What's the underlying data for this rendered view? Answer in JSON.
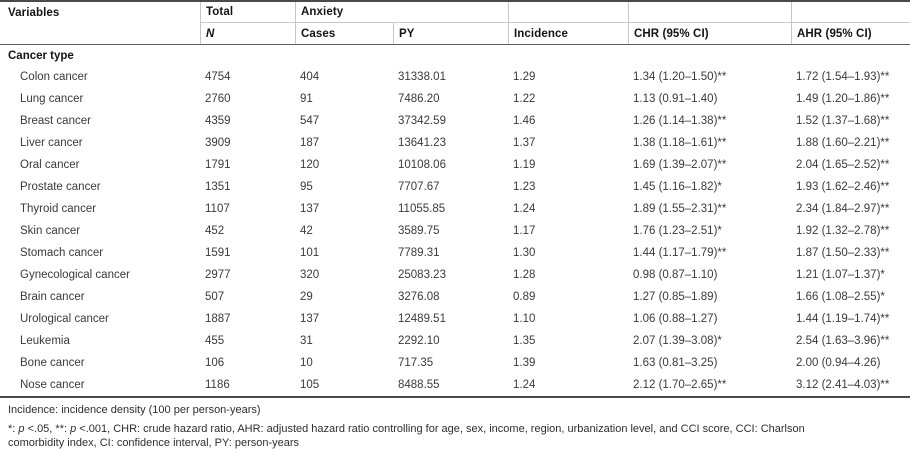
{
  "table": {
    "header": {
      "row1": {
        "variables": "Variables",
        "total": "Total",
        "anxiety": "Anxiety"
      },
      "row2": {
        "n": "N",
        "cases": "Cases",
        "py": "PY",
        "incidence": "Incidence",
        "chr": "CHR (95% CI)",
        "ahr": "AHR (95% CI)"
      }
    },
    "group_label": "Cancer type",
    "rows": [
      {
        "label": "Colon cancer",
        "n": "4754",
        "cases": "404",
        "py": "31338.01",
        "incidence": "1.29",
        "chr": "1.34 (1.20–1.50)**",
        "ahr": "1.72 (1.54–1.93)**"
      },
      {
        "label": "Lung cancer",
        "n": "2760",
        "cases": "91",
        "py": "7486.20",
        "incidence": "1.22",
        "chr": "1.13 (0.91–1.40)",
        "ahr": "1.49 (1.20–1.86)**"
      },
      {
        "label": "Breast cancer",
        "n": "4359",
        "cases": "547",
        "py": "37342.59",
        "incidence": "1.46",
        "chr": "1.26 (1.14–1.38)**",
        "ahr": "1.52 (1.37–1.68)**"
      },
      {
        "label": "Liver cancer",
        "n": "3909",
        "cases": "187",
        "py": "13641.23",
        "incidence": "1.37",
        "chr": "1.38 (1.18–1.61)**",
        "ahr": "1.88 (1.60–2.21)**"
      },
      {
        "label": "Oral cancer",
        "n": "1791",
        "cases": "120",
        "py": "10108.06",
        "incidence": "1.19",
        "chr": "1.69 (1.39–2.07)**",
        "ahr": "2.04 (1.65–2.52)**"
      },
      {
        "label": "Prostate cancer",
        "n": "1351",
        "cases": "95",
        "py": "7707.67",
        "incidence": "1.23",
        "chr": "1.45 (1.16–1.82)*",
        "ahr": "1.93 (1.62–2.46)**"
      },
      {
        "label": "Thyroid cancer",
        "n": "1107",
        "cases": "137",
        "py": "11055.85",
        "incidence": "1.24",
        "chr": "1.89 (1.55–2.31)**",
        "ahr": "2.34 (1.84–2.97)**"
      },
      {
        "label": "Skin cancer",
        "n": "452",
        "cases": "42",
        "py": "3589.75",
        "incidence": "1.17",
        "chr": "1.76 (1.23–2.51)*",
        "ahr": "1.92 (1.32–2.78)**"
      },
      {
        "label": "Stomach cancer",
        "n": "1591",
        "cases": "101",
        "py": "7789.31",
        "incidence": "1.30",
        "chr": "1.44 (1.17–1.79)**",
        "ahr": "1.87 (1.50–2.33)**"
      },
      {
        "label": "Gynecological cancer",
        "n": "2977",
        "cases": "320",
        "py": "25083.23",
        "incidence": "1.28",
        "chr": "0.98 (0.87–1.10)",
        "ahr": "1.21 (1.07–1.37)*"
      },
      {
        "label": "Brain cancer",
        "n": "507",
        "cases": "29",
        "py": "3276.08",
        "incidence": "0.89",
        "chr": "1.27 (0.85–1.89)",
        "ahr": "1.66 (1.08–2.55)*"
      },
      {
        "label": "Urological cancer",
        "n": "1887",
        "cases": "137",
        "py": "12489.51",
        "incidence": "1.10",
        "chr": "1.06 (0.88–1.27)",
        "ahr": "1.44 (1.19–1.74)**"
      },
      {
        "label": "Leukemia",
        "n": "455",
        "cases": "31",
        "py": "2292.10",
        "incidence": "1.35",
        "chr": "2.07 (1.39–3.08)*",
        "ahr": "2.54 (1.63–3.96)**"
      },
      {
        "label": "Bone cancer",
        "n": "106",
        "cases": "10",
        "py": "717.35",
        "incidence": "1.39",
        "chr": "1.63 (0.81–3.25)",
        "ahr": "2.00 (0.94–4.26)"
      },
      {
        "label": "Nose cancer",
        "n": "1186",
        "cases": "105",
        "py": "8488.55",
        "incidence": "1.24",
        "chr": "2.12 (1.70–2.65)**",
        "ahr": "3.12 (2.41–4.03)**"
      }
    ],
    "footnotes": {
      "incidence_note": "Incidence: incidence density (100 per person-years)",
      "abbrev_note": {
        "parts": [
          "*: ",
          "p",
          " <.05, **: ",
          "p",
          " <.001, CHR: crude hazard ratio, AHR: adjusted hazard ratio controlling for age, sex, income, region, urbanization level, and CCI score, CCI: Charlson"
        ],
        "line2": "comorbidity index, CI: confidence interval, PY: person-years"
      }
    }
  }
}
